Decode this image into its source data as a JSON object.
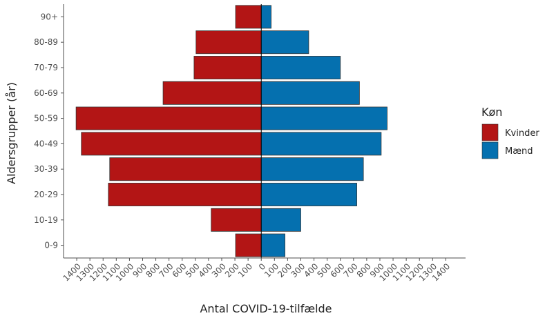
{
  "chart_data": {
    "type": "bar",
    "orientation": "horizontal",
    "layout": "population-pyramid",
    "categories": [
      "0-9",
      "10-19",
      "20-29",
      "30-39",
      "40-49",
      "50-59",
      "60-69",
      "70-79",
      "80-89",
      "90+"
    ],
    "series": [
      {
        "name": "Kvinder",
        "side": "left",
        "color": "#B31515",
        "values": [
          195,
          380,
          1160,
          1150,
          1365,
          1405,
          745,
          510,
          495,
          195
        ]
      },
      {
        "name": "Mænd",
        "side": "right",
        "color": "#0570AF",
        "values": [
          180,
          300,
          725,
          775,
          910,
          955,
          745,
          600,
          360,
          75
        ]
      }
    ],
    "xlabel": "Antal COVID-19-tilfælde",
    "ylabel": "Aldersgrupper (år)",
    "xlim": [
      -1500,
      1550
    ],
    "x_ticks": [
      -1400,
      -1300,
      -1200,
      -1100,
      -1000,
      -900,
      -800,
      -700,
      -600,
      -500,
      -400,
      -300,
      -200,
      -100,
      0,
      100,
      200,
      300,
      400,
      500,
      600,
      700,
      800,
      900,
      1000,
      1100,
      1200,
      1300,
      1400
    ],
    "x_tick_labels": [
      "1400",
      "1300",
      "1200",
      "1100",
      "1000",
      "900",
      "800",
      "700",
      "600",
      "500",
      "400",
      "300",
      "200",
      "100",
      "0",
      "100",
      "200",
      "300",
      "400",
      "500",
      "600",
      "700",
      "800",
      "900",
      "1000",
      "1100",
      "1200",
      "1300",
      "1400"
    ],
    "legend": {
      "title": "Køn",
      "position": "right"
    },
    "grid": false
  }
}
